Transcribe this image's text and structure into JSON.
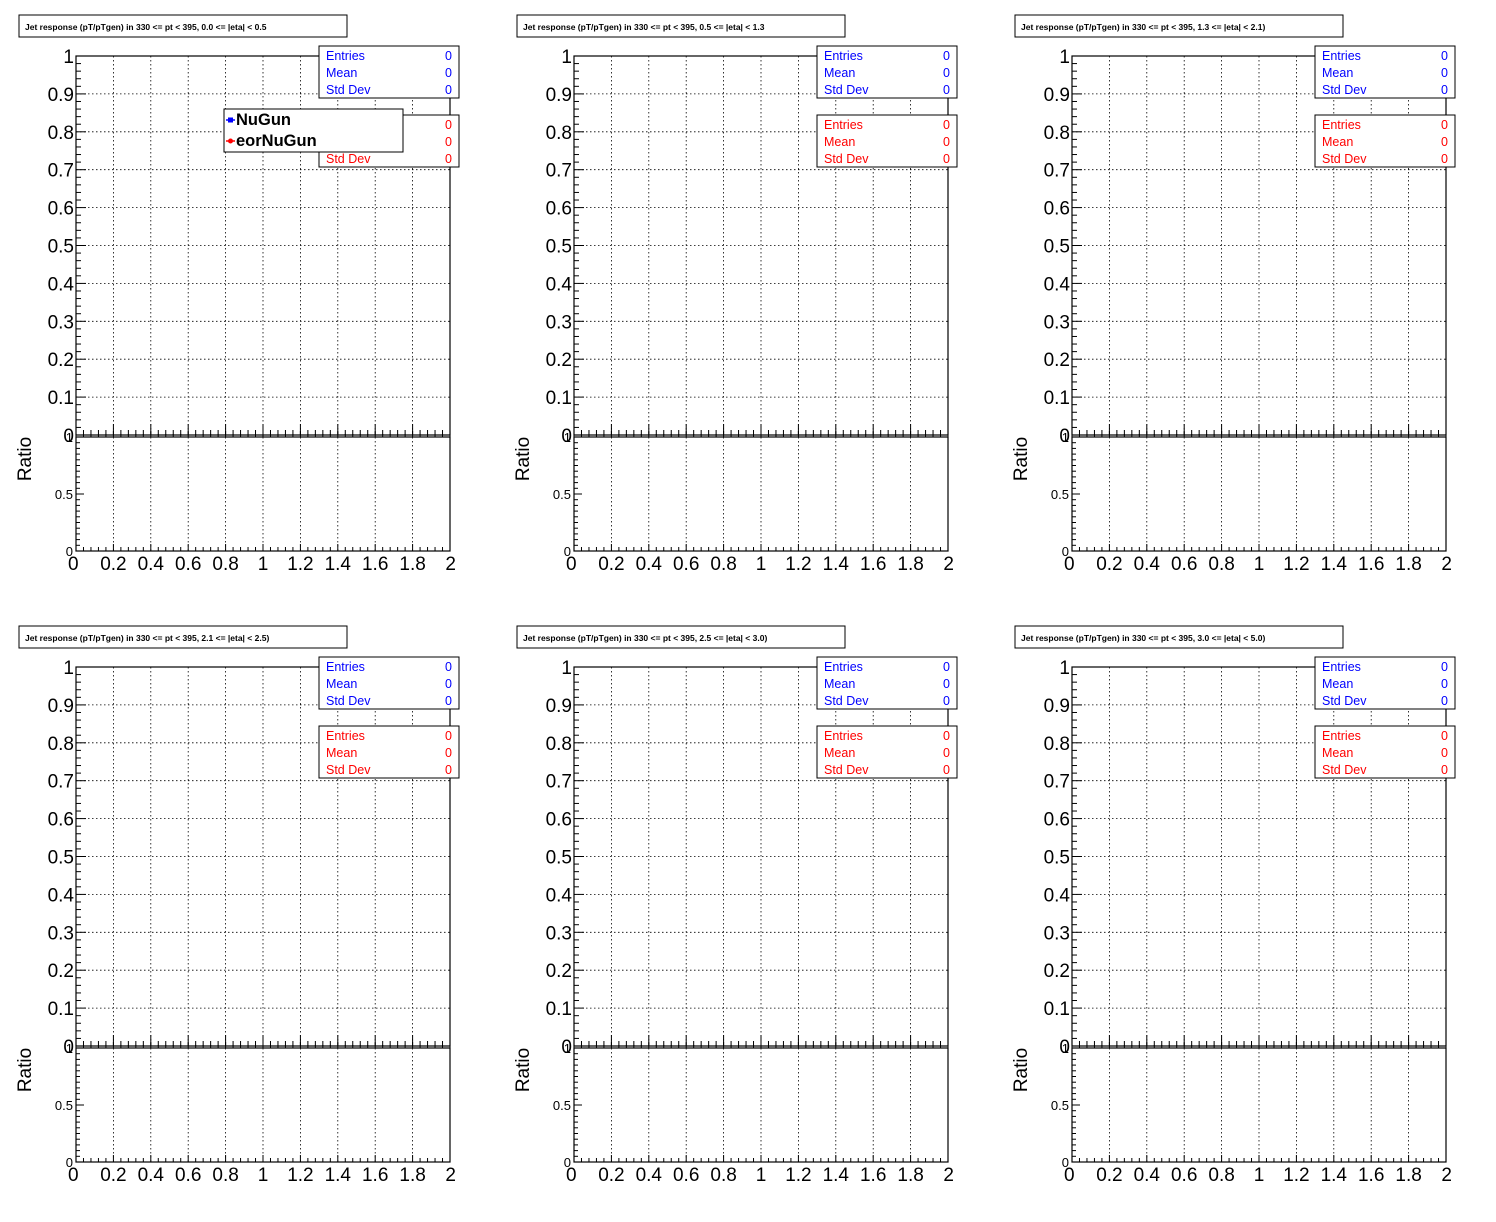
{
  "colors": {
    "series_a": "#0000ff",
    "series_b": "#ff0000",
    "frame": "#000000",
    "grid": "#000000"
  },
  "legend": {
    "entries": [
      "NuGun",
      "eorNuGun"
    ]
  },
  "stat_labels": [
    "Entries",
    "Mean",
    "Std Dev"
  ],
  "chart_data": [
    {
      "type": "line",
      "title": "Jet response (pT/pTgen) in 330 <= pt < 395, 0.0 <= |eta| < 0.5",
      "xlim": [
        0,
        2
      ],
      "ylim": [
        0,
        1
      ],
      "ratio_ylim": [
        0,
        1
      ],
      "x_ticks": [
        "0",
        "0.2",
        "0.4",
        "0.6",
        "0.8",
        "1",
        "1.2",
        "1.4",
        "1.6",
        "1.8",
        "2"
      ],
      "y_ticks": [
        "0",
        "0.1",
        "0.2",
        "0.3",
        "0.4",
        "0.5",
        "0.6",
        "0.7",
        "0.8",
        "0.9",
        "1"
      ],
      "ratio_ticks": [
        "0",
        "0.5",
        "1"
      ],
      "ratio_ylabel": "Ratio",
      "grid": true,
      "show_legend": true,
      "series": [
        {
          "name": "NuGun",
          "values": [],
          "stats": {
            "Entries": "0",
            "Mean": "0",
            "Std Dev": "0"
          }
        },
        {
          "name": "eorNuGun",
          "values": [],
          "stats": {
            "Entries": "0",
            "Mean": "0",
            "Std Dev": "0"
          }
        }
      ]
    },
    {
      "type": "line",
      "title": "Jet response (pT/pTgen) in 330 <= pt < 395, 0.5 <= |eta| < 1.3",
      "xlim": [
        0,
        2
      ],
      "ylim": [
        0,
        1
      ],
      "ratio_ylim": [
        0,
        1
      ],
      "x_ticks": [
        "0",
        "0.2",
        "0.4",
        "0.6",
        "0.8",
        "1",
        "1.2",
        "1.4",
        "1.6",
        "1.8",
        "2"
      ],
      "y_ticks": [
        "0",
        "0.1",
        "0.2",
        "0.3",
        "0.4",
        "0.5",
        "0.6",
        "0.7",
        "0.8",
        "0.9",
        "1"
      ],
      "ratio_ticks": [
        "0",
        "0.5",
        "1"
      ],
      "ratio_ylabel": "Ratio",
      "grid": true,
      "show_legend": false,
      "series": [
        {
          "values": [],
          "stats": {
            "Entries": "0",
            "Mean": "0",
            "Std Dev": "0"
          }
        },
        {
          "values": [],
          "stats": {
            "Entries": "0",
            "Mean": "0",
            "Std Dev": "0"
          }
        }
      ]
    },
    {
      "type": "line",
      "title": "Jet response (pT/pTgen) in 330 <= pt < 395, 1.3 <= |eta| < 2.1)",
      "xlim": [
        0,
        2
      ],
      "ylim": [
        0,
        1
      ],
      "ratio_ylim": [
        0,
        1
      ],
      "x_ticks": [
        "0",
        "0.2",
        "0.4",
        "0.6",
        "0.8",
        "1",
        "1.2",
        "1.4",
        "1.6",
        "1.8",
        "2"
      ],
      "y_ticks": [
        "0",
        "0.1",
        "0.2",
        "0.3",
        "0.4",
        "0.5",
        "0.6",
        "0.7",
        "0.8",
        "0.9",
        "1"
      ],
      "ratio_ticks": [
        "0",
        "0.5",
        "1"
      ],
      "ratio_ylabel": "Ratio",
      "grid": true,
      "show_legend": false,
      "series": [
        {
          "values": [],
          "stats": {
            "Entries": "0",
            "Mean": "0",
            "Std Dev": "0"
          }
        },
        {
          "values": [],
          "stats": {
            "Entries": "0",
            "Mean": "0",
            "Std Dev": "0"
          }
        }
      ]
    },
    {
      "type": "line",
      "title": "Jet response (pT/pTgen) in 330 <= pt < 395, 2.1 <= |eta| < 2.5)",
      "xlim": [
        0,
        2
      ],
      "ylim": [
        0,
        1
      ],
      "ratio_ylim": [
        0,
        1
      ],
      "x_ticks": [
        "0",
        "0.2",
        "0.4",
        "0.6",
        "0.8",
        "1",
        "1.2",
        "1.4",
        "1.6",
        "1.8",
        "2"
      ],
      "y_ticks": [
        "0",
        "0.1",
        "0.2",
        "0.3",
        "0.4",
        "0.5",
        "0.6",
        "0.7",
        "0.8",
        "0.9",
        "1"
      ],
      "ratio_ticks": [
        "0",
        "0.5",
        "1"
      ],
      "ratio_ylabel": "Ratio",
      "grid": true,
      "show_legend": false,
      "series": [
        {
          "values": [],
          "stats": {
            "Entries": "0",
            "Mean": "0",
            "Std Dev": "0"
          }
        },
        {
          "values": [],
          "stats": {
            "Entries": "0",
            "Mean": "0",
            "Std Dev": "0"
          }
        }
      ]
    },
    {
      "type": "line",
      "title": "Jet response (pT/pTgen) in 330 <= pt < 395, 2.5 <= |eta| < 3.0)",
      "xlim": [
        0,
        2
      ],
      "ylim": [
        0,
        1
      ],
      "ratio_ylim": [
        0,
        1
      ],
      "x_ticks": [
        "0",
        "0.2",
        "0.4",
        "0.6",
        "0.8",
        "1",
        "1.2",
        "1.4",
        "1.6",
        "1.8",
        "2"
      ],
      "y_ticks": [
        "0",
        "0.1",
        "0.2",
        "0.3",
        "0.4",
        "0.5",
        "0.6",
        "0.7",
        "0.8",
        "0.9",
        "1"
      ],
      "ratio_ticks": [
        "0",
        "0.5",
        "1"
      ],
      "ratio_ylabel": "Ratio",
      "grid": true,
      "show_legend": false,
      "series": [
        {
          "values": [],
          "stats": {
            "Entries": "0",
            "Mean": "0",
            "Std Dev": "0"
          }
        },
        {
          "values": [],
          "stats": {
            "Entries": "0",
            "Mean": "0",
            "Std Dev": "0"
          }
        }
      ]
    },
    {
      "type": "line",
      "title": "Jet response (pT/pTgen) in 330 <= pt < 395, 3.0 <= |eta| < 5.0)",
      "xlim": [
        0,
        2
      ],
      "ylim": [
        0,
        1
      ],
      "ratio_ylim": [
        0,
        1
      ],
      "x_ticks": [
        "0",
        "0.2",
        "0.4",
        "0.6",
        "0.8",
        "1",
        "1.2",
        "1.4",
        "1.6",
        "1.8",
        "2"
      ],
      "y_ticks": [
        "0",
        "0.1",
        "0.2",
        "0.3",
        "0.4",
        "0.5",
        "0.6",
        "0.7",
        "0.8",
        "0.9",
        "1"
      ],
      "ratio_ticks": [
        "0",
        "0.5",
        "1"
      ],
      "ratio_ylabel": "Ratio",
      "grid": true,
      "show_legend": false,
      "series": [
        {
          "values": [],
          "stats": {
            "Entries": "0",
            "Mean": "0",
            "Std Dev": "0"
          }
        },
        {
          "values": [],
          "stats": {
            "Entries": "0",
            "Mean": "0",
            "Std Dev": "0"
          }
        }
      ]
    }
  ]
}
